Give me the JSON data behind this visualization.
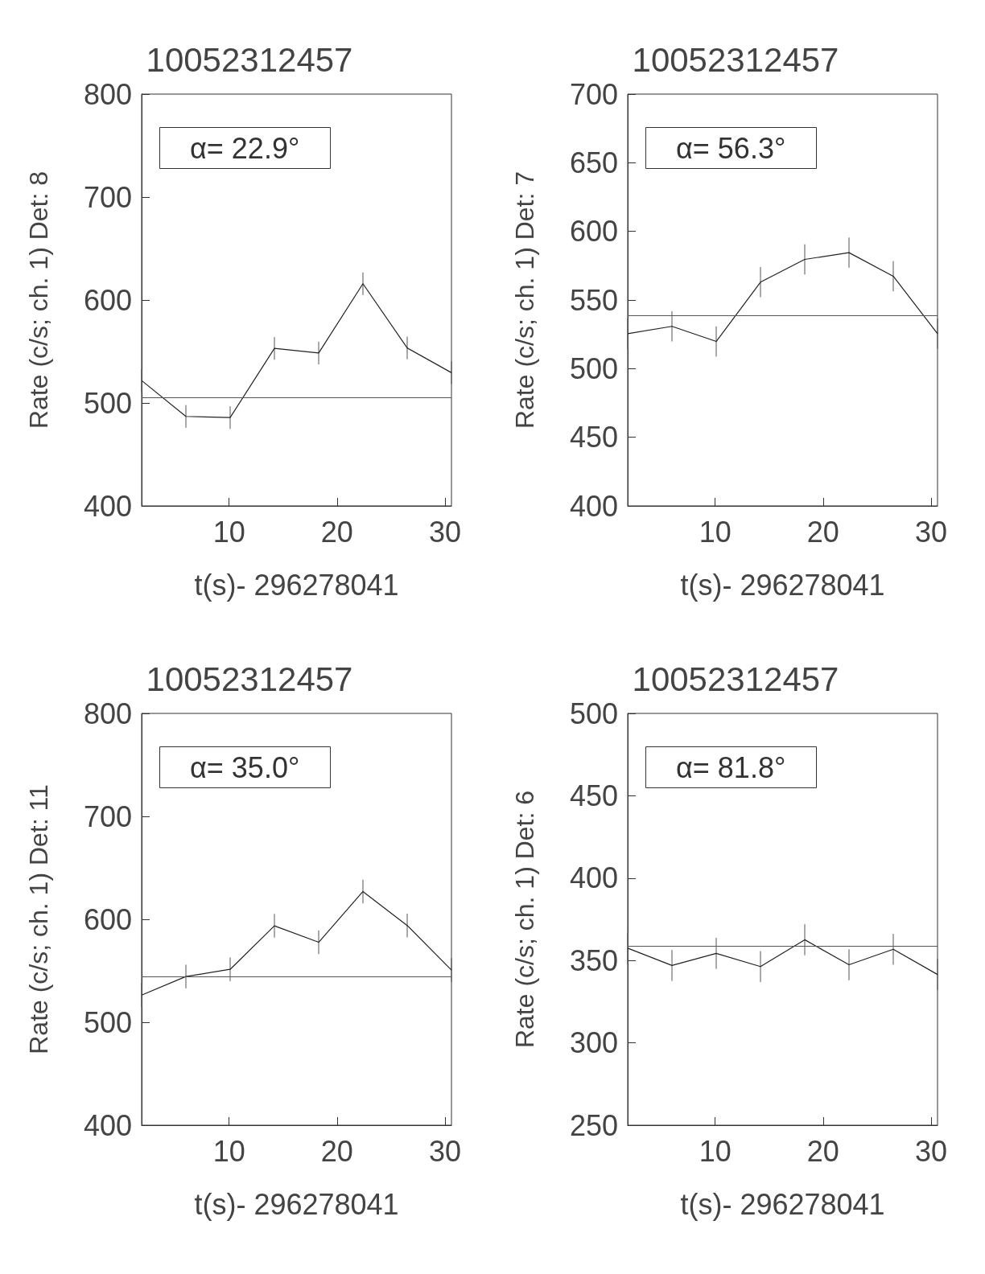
{
  "chart_data": [
    {
      "type": "line",
      "title": "10052312457",
      "xlabel": "t(s)- 296278041",
      "ylabel": "Rate (c/s; ch. 1) Det: 8",
      "annotations": [
        "α= 22.9°"
      ],
      "color": "#222222",
      "x": [
        1.9,
        6.0,
        10.1,
        14.2,
        18.3,
        22.4,
        26.5,
        30.6
      ],
      "values": [
        521.8,
        486.9,
        485.8,
        553,
        548.5,
        615.8,
        553.4,
        529.4
      ],
      "errors": [
        11,
        11,
        11,
        11,
        11,
        11,
        11,
        11
      ],
      "xlim": [
        1.9,
        30.6
      ],
      "xticks": [
        10,
        20,
        30
      ],
      "ylim": [
        400,
        800
      ],
      "yticks": [
        400,
        500,
        600,
        700,
        800
      ],
      "ref_lines": [
        {
          "axis": "y",
          "value": 505,
          "color": "#555555"
        }
      ]
    },
    {
      "type": "line",
      "title": "10052312457",
      "xlabel": "t(s)- 296278041",
      "ylabel": "Rate (c/s; ch. 1) Det: 7",
      "annotations": [
        "α= 56.3°"
      ],
      "color": "#222222",
      "x": [
        1.9,
        6.0,
        10.1,
        14.2,
        18.3,
        22.4,
        26.5,
        30.6
      ],
      "values": [
        525.5,
        530.8,
        519.8,
        563,
        579.6,
        584.5,
        567.3,
        525.5
      ],
      "errors": [
        11,
        11,
        11,
        11,
        11,
        11,
        11,
        11
      ],
      "xlim": [
        1.9,
        30.6
      ],
      "xticks": [
        10,
        20,
        30
      ],
      "ylim": [
        400,
        700
      ],
      "yticks": [
        400,
        450,
        500,
        550,
        600,
        650,
        700
      ],
      "ref_lines": [
        {
          "axis": "y",
          "value": 539,
          "color": "#555555"
        }
      ]
    },
    {
      "type": "line",
      "title": "10052312457",
      "xlabel": "t(s)- 296278041",
      "ylabel": "Rate (c/s; ch. 1) Det: 11",
      "annotations": [
        "α= 35.0°"
      ],
      "color": "#222222",
      "x": [
        1.9,
        6.0,
        10.1,
        14.2,
        18.3,
        22.4,
        26.5,
        30.6
      ],
      "values": [
        526.4,
        544.4,
        551.4,
        593.7,
        577.7,
        627,
        594,
        550.7
      ],
      "errors": [
        11.5,
        11.5,
        11.5,
        11.5,
        11.5,
        11.5,
        11.5,
        11.5
      ],
      "xlim": [
        1.9,
        30.6
      ],
      "xticks": [
        10,
        20,
        30
      ],
      "ylim": [
        400,
        800
      ],
      "yticks": [
        400,
        500,
        600,
        700,
        800
      ],
      "ref_lines": [
        {
          "axis": "y",
          "value": 544,
          "color": "#555555"
        }
      ]
    },
    {
      "type": "line",
      "title": "10052312457",
      "xlabel": "t(s)- 296278041",
      "ylabel": "Rate (c/s; ch. 1) Det: 6",
      "annotations": [
        "α= 81.8°"
      ],
      "color": "#222222",
      "x": [
        1.9,
        6.0,
        10.1,
        14.2,
        18.3,
        22.4,
        26.5,
        30.6
      ],
      "values": [
        357.5,
        347,
        354.3,
        346.3,
        362.6,
        347.4,
        356.8,
        341.5
      ],
      "errors": [
        9.4,
        9.4,
        9.4,
        9.4,
        9.4,
        9.4,
        9.4,
        9.4
      ],
      "xlim": [
        1.9,
        30.6
      ],
      "xticks": [
        10,
        20,
        30
      ],
      "ylim": [
        250,
        500
      ],
      "yticks": [
        250,
        300,
        350,
        400,
        450,
        500
      ],
      "ref_lines": [
        {
          "axis": "y",
          "value": 358.7,
          "color": "#555555"
        }
      ]
    }
  ]
}
